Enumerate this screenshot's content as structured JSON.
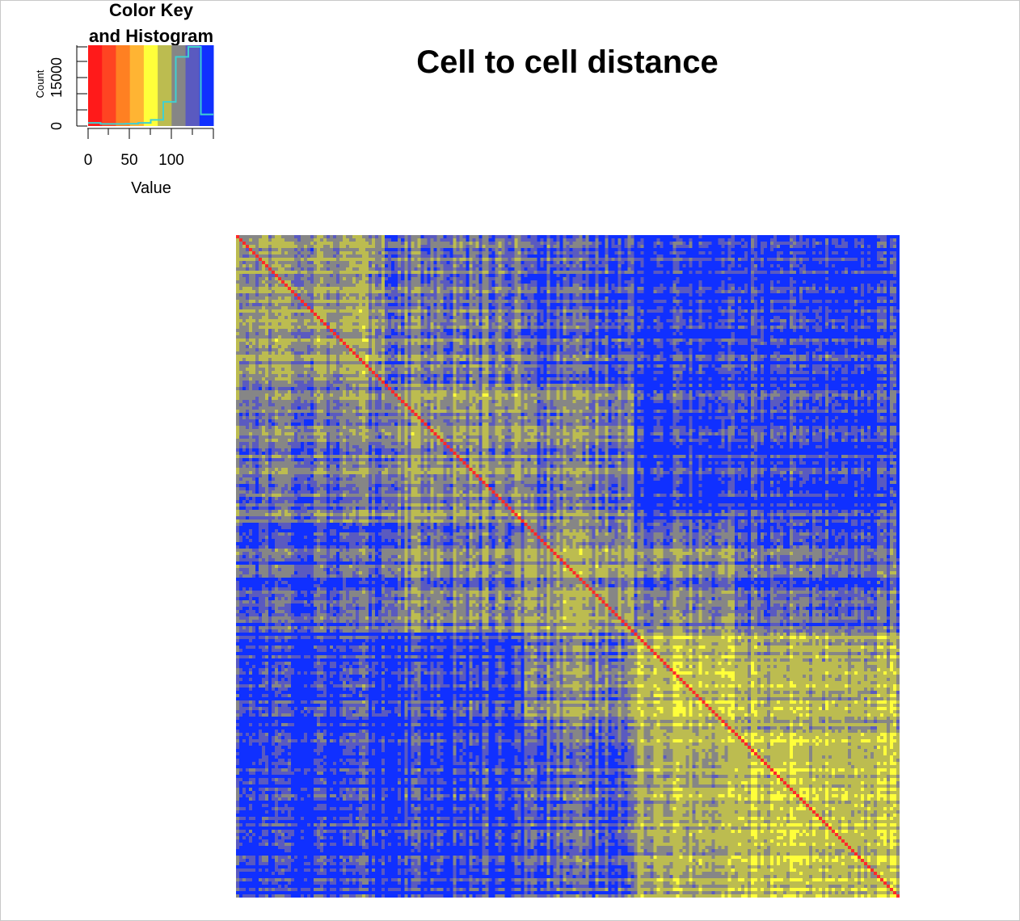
{
  "main_title": "Cell to cell distance",
  "key": {
    "title_line1": "Color Key",
    "title_line2": "and Histogram",
    "ylabel": "Count",
    "xlabel": "Value",
    "y_ticks": [
      "0",
      "15000"
    ],
    "x_ticks": [
      "0",
      "50",
      "100"
    ],
    "value_range": [
      0,
      150
    ],
    "colors": [
      "#FF1A1A",
      "#FF4422",
      "#FF8022",
      "#FFB433",
      "#FFFF3A",
      "#BCBC50",
      "#868686",
      "#5A5AC0",
      "#1030FF"
    ],
    "histogram_line_color": "#40D0D0",
    "histogram": [
      {
        "value": 0,
        "count": 300
      },
      {
        "value": 15,
        "count": 100
      },
      {
        "value": 30,
        "count": 100
      },
      {
        "value": 45,
        "count": 150
      },
      {
        "value": 60,
        "count": 300
      },
      {
        "value": 75,
        "count": 900
      },
      {
        "value": 90,
        "count": 4500
      },
      {
        "value": 105,
        "count": 13500
      },
      {
        "value": 120,
        "count": 15500
      },
      {
        "value": 135,
        "count": 2000
      }
    ]
  },
  "chart_data": {
    "type": "heatmap",
    "title": "Cell to cell distance",
    "diagonal_color": "#FF2A2A",
    "cell_colors": {
      "blue": "#1030FF",
      "slate_blue": "#5A5AC0",
      "grey": "#868686",
      "olive": "#BCBC50",
      "yellow": "#FFFF3A"
    }
  }
}
